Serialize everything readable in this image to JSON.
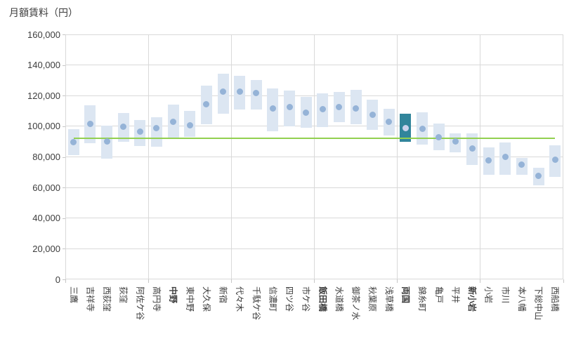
{
  "chart_data": {
    "type": "floating-bar",
    "title": "月額賃料（円）",
    "ylabel": "月額賃料（円）",
    "xlabel": "",
    "ylim": [
      0,
      160000
    ],
    "ytick_step": 20000,
    "ytick_labels": [
      "0",
      "20,000",
      "40,000",
      "60,000",
      "80,000",
      "100,000",
      "120,000",
      "140,000",
      "160,000"
    ],
    "legend": "none",
    "grid": {
      "horizontal": true,
      "vertical_every": 5
    },
    "bar_semantics": "each bar = monthly rent range (min to max), dot = typical rent",
    "reference_line": {
      "value": 92000,
      "color": "#92d050"
    },
    "colors": {
      "bar": "#dce6f2",
      "dot": "#95b3d7",
      "highlight_bar": "#31859b",
      "highlight_dot": "#c9d2ec",
      "gridline": "#d9d9d9",
      "axis_text": "#3d3d3d",
      "reference_line": "#92d050",
      "background": "#ffffff"
    },
    "stations": [
      {
        "name": "三鷹",
        "min": 81000,
        "max": 98000,
        "point": 89500,
        "highlight": false,
        "bold": false
      },
      {
        "name": "吉祥寺",
        "min": 89000,
        "max": 113500,
        "point": 101500,
        "highlight": false,
        "bold": false
      },
      {
        "name": "西荻窪",
        "min": 79000,
        "max": 100500,
        "point": 90000,
        "highlight": false,
        "bold": false
      },
      {
        "name": "荻窪",
        "min": 90000,
        "max": 108500,
        "point": 99500,
        "highlight": false,
        "bold": false
      },
      {
        "name": "阿佐ケ谷",
        "min": 87000,
        "max": 104000,
        "point": 96500,
        "highlight": false,
        "bold": false
      },
      {
        "name": "高円寺",
        "min": 86500,
        "max": 106000,
        "point": 99000,
        "highlight": false,
        "bold": false
      },
      {
        "name": "中野",
        "min": 91500,
        "max": 114000,
        "point": 103000,
        "highlight": false,
        "bold": true
      },
      {
        "name": "東中野",
        "min": 93000,
        "max": 110000,
        "point": 100500,
        "highlight": false,
        "bold": false
      },
      {
        "name": "大久保",
        "min": 101500,
        "max": 126500,
        "point": 114500,
        "highlight": false,
        "bold": false
      },
      {
        "name": "新宿",
        "min": 108000,
        "max": 134500,
        "point": 122500,
        "highlight": false,
        "bold": false
      },
      {
        "name": "代々木",
        "min": 111000,
        "max": 133000,
        "point": 122500,
        "highlight": false,
        "bold": false
      },
      {
        "name": "千駄ケ谷",
        "min": 111000,
        "max": 130000,
        "point": 121500,
        "highlight": false,
        "bold": false
      },
      {
        "name": "信濃町",
        "min": 96500,
        "max": 124500,
        "point": 111500,
        "highlight": false,
        "bold": false
      },
      {
        "name": "四ツ谷",
        "min": 100000,
        "max": 123500,
        "point": 112500,
        "highlight": false,
        "bold": false
      },
      {
        "name": "市ケ谷",
        "min": 99000,
        "max": 119000,
        "point": 109000,
        "highlight": false,
        "bold": false
      },
      {
        "name": "飯田橋",
        "min": 99500,
        "max": 121500,
        "point": 111000,
        "highlight": false,
        "bold": true
      },
      {
        "name": "水道橋",
        "min": 102500,
        "max": 122500,
        "point": 112500,
        "highlight": false,
        "bold": false
      },
      {
        "name": "御茶ノ水",
        "min": 101500,
        "max": 124000,
        "point": 111500,
        "highlight": false,
        "bold": false
      },
      {
        "name": "秋葉原",
        "min": 97500,
        "max": 117500,
        "point": 107500,
        "highlight": false,
        "bold": false
      },
      {
        "name": "浅草橋",
        "min": 94000,
        "max": 111500,
        "point": 103000,
        "highlight": false,
        "bold": false
      },
      {
        "name": "両国",
        "min": 90000,
        "max": 108000,
        "point": 99000,
        "highlight": true,
        "bold": true
      },
      {
        "name": "錦糸町",
        "min": 88000,
        "max": 109000,
        "point": 98500,
        "highlight": false,
        "bold": false
      },
      {
        "name": "亀戸",
        "min": 84500,
        "max": 102000,
        "point": 93000,
        "highlight": false,
        "bold": false
      },
      {
        "name": "平井",
        "min": 83000,
        "max": 95500,
        "point": 90000,
        "highlight": false,
        "bold": false
      },
      {
        "name": "新小岩",
        "min": 74500,
        "max": 95500,
        "point": 85500,
        "highlight": false,
        "bold": true
      },
      {
        "name": "小岩",
        "min": 68500,
        "max": 86000,
        "point": 77500,
        "highlight": false,
        "bold": false
      },
      {
        "name": "市川",
        "min": 68500,
        "max": 89500,
        "point": 80000,
        "highlight": false,
        "bold": false
      },
      {
        "name": "本八幡",
        "min": 68500,
        "max": 79500,
        "point": 75000,
        "highlight": false,
        "bold": false
      },
      {
        "name": "下総中山",
        "min": 61500,
        "max": 73000,
        "point": 67500,
        "highlight": false,
        "bold": false
      },
      {
        "name": "西船橋",
        "min": 67000,
        "max": 87500,
        "point": 78000,
        "highlight": false,
        "bold": false
      }
    ]
  }
}
